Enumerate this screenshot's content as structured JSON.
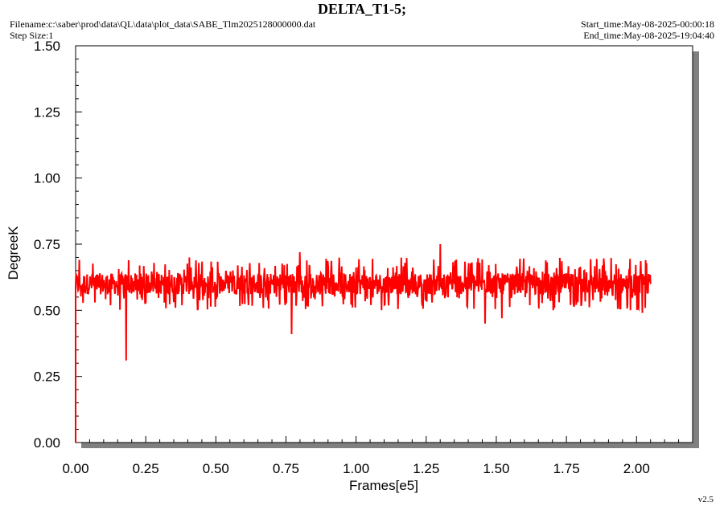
{
  "header": {
    "title": "DELTA_T1-5;",
    "filename": "Filename:c:\\saber\\prod\\data\\QL\\data\\plot_data\\SABE_Tlm2025128000000.dat",
    "step_size": "Step Size:1",
    "start_time": "Start_time:May-08-2025-00:00:18",
    "end_time": "End_time:May-08-2025-19:04:40"
  },
  "footer": {
    "version": "v2.5"
  },
  "colors": {
    "series": "#ff0000",
    "shadow": "#808080",
    "frame": "#000000"
  },
  "chart_data": {
    "type": "line",
    "title": "DELTA_T1-5;",
    "xlabel": "Frames[e5]",
    "ylabel": "DegreeK",
    "xlim": [
      0,
      2.2
    ],
    "ylim": [
      0,
      1.5
    ],
    "xticks": [
      "0.00",
      "0.25",
      "0.50",
      "0.75",
      "1.00",
      "1.25",
      "1.50",
      "1.75",
      "2.00"
    ],
    "yticks": [
      "0.00",
      "0.25",
      "0.50",
      "0.75",
      "1.00",
      "1.25",
      "1.50"
    ],
    "grid": false,
    "series": [
      {
        "x_range": [
          0,
          2.05
        ],
        "baseline_band": [
          0.56,
          0.64
        ],
        "typical_range": [
          0.5,
          0.7
        ],
        "spikes": [
          {
            "x": 0.0,
            "y": 0.0
          },
          {
            "x": 0.18,
            "y": 0.31
          },
          {
            "x": 0.77,
            "y": 0.41
          },
          {
            "x": 0.8,
            "y": 0.72
          },
          {
            "x": 1.3,
            "y": 0.75
          },
          {
            "x": 1.46,
            "y": 0.45
          },
          {
            "x": 1.52,
            "y": 0.47
          },
          {
            "x": 2.02,
            "y": 0.49
          }
        ]
      }
    ]
  }
}
